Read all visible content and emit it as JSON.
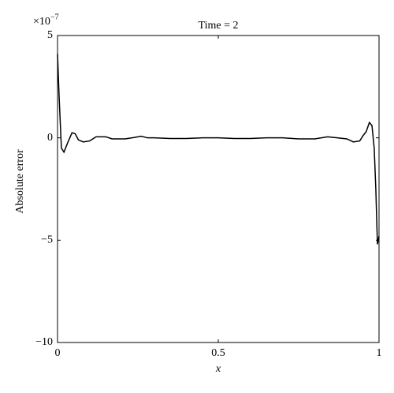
{
  "chart_data": {
    "type": "line",
    "title": "Time = 2",
    "x_label": "x",
    "y_label": "Absolute error",
    "y_scale_base": "×10",
    "y_scale_exponent": "−7",
    "x": [
      0,
      0.005,
      0.012,
      0.02,
      0.03,
      0.045,
      0.055,
      0.065,
      0.08,
      0.1,
      0.12,
      0.15,
      0.17,
      0.21,
      0.24,
      0.26,
      0.28,
      0.3,
      0.35,
      0.4,
      0.45,
      0.5,
      0.55,
      0.6,
      0.65,
      0.7,
      0.75,
      0.8,
      0.84,
      0.87,
      0.9,
      0.92,
      0.94,
      0.95,
      0.96,
      0.97,
      0.978,
      0.985,
      0.99,
      0.995,
      1
    ],
    "series": [
      {
        "name": "error",
        "color": "#000000",
        "values": [
          4.1,
          2,
          -0.5,
          -0.7,
          -0.3,
          0.25,
          0.2,
          -0.1,
          -0.2,
          -0.15,
          0.05,
          0.05,
          -0.05,
          -0.05,
          0.02,
          0.08,
          0,
          0,
          -0.03,
          -0.03,
          0,
          0,
          -0.03,
          -0.03,
          0,
          0,
          -0.05,
          -0.05,
          0.05,
          0,
          -0.05,
          -0.2,
          -0.15,
          0.1,
          0.3,
          0.75,
          0.6,
          -0.5,
          -2.5,
          -5.2,
          -4.8
        ]
      }
    ],
    "xlim": [
      0,
      1
    ],
    "xticks": [
      0,
      0.5,
      1
    ],
    "ylim": [
      -10,
      5
    ],
    "yticks": [
      {
        "value": -10,
        "label": "−10"
      },
      {
        "value": -5,
        "label": "−5"
      },
      0,
      5
    ]
  }
}
